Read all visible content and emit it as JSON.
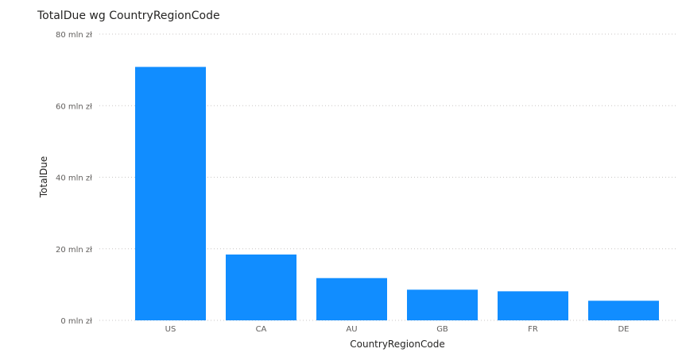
{
  "chart_data": {
    "type": "bar",
    "title": "TotalDue wg CountryRegionCode",
    "xlabel": "CountryRegionCode",
    "ylabel": "TotalDue",
    "categories": [
      "US",
      "CA",
      "AU",
      "GB",
      "FR",
      "DE"
    ],
    "values": [
      70.83,
      18.4,
      11.81,
      8.57,
      8.12,
      5.48
    ],
    "unit": "mln zł",
    "ylim": [
      0,
      80
    ],
    "yticks": [
      0,
      20,
      40,
      60,
      80
    ],
    "ytick_labels": [
      "0 mln zł",
      "20 mln zł",
      "40 mln zł",
      "60 mln zł",
      "80 mln zł"
    ],
    "grid": true,
    "legend": "none",
    "bar_color": "#118DFF"
  }
}
